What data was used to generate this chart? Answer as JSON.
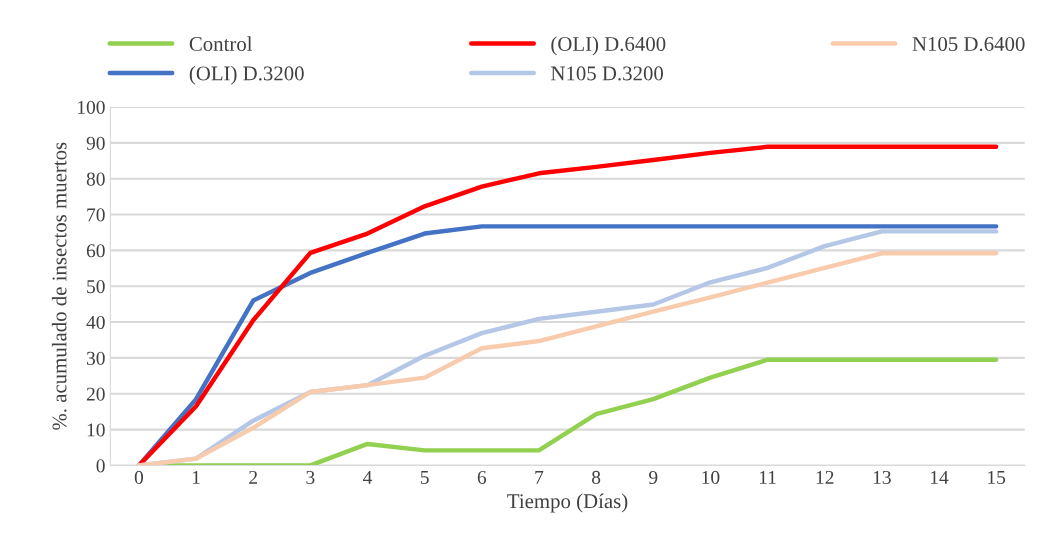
{
  "chart_data": {
    "type": "line",
    "xlabel": "Tiempo (Días)",
    "ylabel": "%. acumulado de insectos muertos",
    "x": [
      0,
      1,
      2,
      3,
      4,
      5,
      6,
      7,
      8,
      9,
      10,
      11,
      12,
      13,
      14,
      15
    ],
    "series": [
      {
        "name": "Control",
        "color": "#92d050",
        "values": [
          0,
          0,
          0,
          0,
          6,
          4.2,
          4.2,
          4.2,
          14.3,
          18.5,
          24.5,
          29.5,
          29.5,
          29.5,
          29.5,
          29.5
        ]
      },
      {
        "name": "(OLI) D.3200",
        "color": "#4472c4",
        "values": [
          0,
          18.5,
          46,
          53.7,
          59.3,
          64.7,
          66.7,
          66.7,
          66.7,
          66.7,
          66.7,
          66.7,
          66.7,
          66.7,
          66.7,
          66.7
        ]
      },
      {
        "name": "(OLI) D.6400",
        "color": "#ff0000",
        "values": [
          0,
          16.5,
          40.5,
          59.3,
          64.7,
          72.3,
          77.8,
          81.5,
          83.3,
          85.2,
          87.2,
          88.9,
          88.9,
          88.9,
          88.9,
          88.9
        ]
      },
      {
        "name": "N105 D.3200",
        "color": "#b4c7e7",
        "values": [
          0,
          1.9,
          12.5,
          20.5,
          22.4,
          30.6,
          36.9,
          40.9,
          42.9,
          44.9,
          51.1,
          55.1,
          61.2,
          65.3,
          65.3,
          65.3
        ]
      },
      {
        "name": "N105 D.6400",
        "color": "#f8cbad",
        "values": [
          0,
          1.9,
          10.5,
          20.5,
          22.4,
          24.5,
          32.7,
          34.7,
          38.8,
          42.9,
          46.9,
          51,
          55.1,
          59.2,
          59.2,
          59.2
        ]
      }
    ],
    "xlim": [
      -0.5,
      15.5
    ],
    "xticks": [
      0,
      1,
      2,
      3,
      4,
      5,
      6,
      7,
      8,
      9,
      10,
      11,
      12,
      13,
      14,
      15
    ],
    "ylim": [
      0,
      100
    ],
    "yticks": [
      0,
      10,
      20,
      30,
      40,
      50,
      60,
      70,
      80,
      90,
      100
    ],
    "grid": "y",
    "legend": "top",
    "marker": "none",
    "line_style": "solid"
  }
}
